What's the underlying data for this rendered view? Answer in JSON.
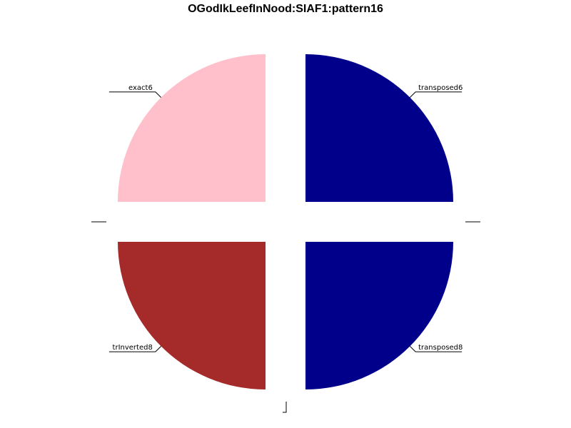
{
  "chart_data": {
    "type": "pie",
    "title": "OGodIkLeefInNood:SIAF1:pattern16",
    "slices": [
      {
        "label": "transposed6",
        "value": 25,
        "color": "#00008B"
      },
      {
        "label": "exact6",
        "value": 25,
        "color": "#FFC0CB"
      },
      {
        "label": "trInverted8",
        "value": 25,
        "color": "#A52A2A"
      },
      {
        "label": "transposed8",
        "value": 25,
        "color": "#00008B"
      }
    ],
    "exploded": true,
    "legend": "none"
  }
}
